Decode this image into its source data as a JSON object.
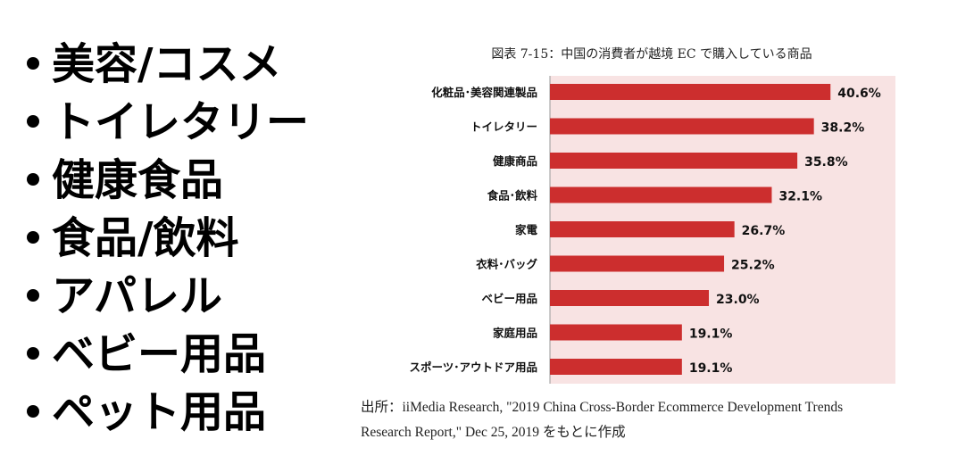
{
  "bullets": [
    "美容/コスメ",
    "トイレタリー",
    "健康食品",
    "食品/飲料",
    "アパレル",
    "ベビー用品",
    "ペット用品"
  ],
  "chart_data": {
    "type": "bar",
    "orientation": "horizontal",
    "title": "図表 7-15：中国の消費者が越境 EC で購入している商品",
    "categories": [
      "化粧品･美容関連製品",
      "トイレタリー",
      "健康商品",
      "食品･飲料",
      "家電",
      "衣料･バッグ",
      "ベビー用品",
      "家庭用品",
      "スポーツ･アウトドア用品"
    ],
    "values": [
      40.6,
      38.2,
      35.8,
      32.1,
      26.7,
      25.2,
      23.0,
      19.1,
      19.1
    ],
    "labels": [
      "40.6%",
      "38.2%",
      "35.8%",
      "32.1%",
      "26.7%",
      "25.2%",
      "23.0%",
      "19.1%",
      "19.1%"
    ],
    "xlim": [
      0,
      50
    ],
    "unit": "%",
    "colors": {
      "bar": "#cc2e2e",
      "plot_bg": "#f8e3e3"
    }
  },
  "source": {
    "line1": "出所：iiMedia Research, \"2019 China Cross-Border Ecommerce Development Trends",
    "line2": "Research Report,\" Dec 25, 2019 をもとに作成"
  }
}
